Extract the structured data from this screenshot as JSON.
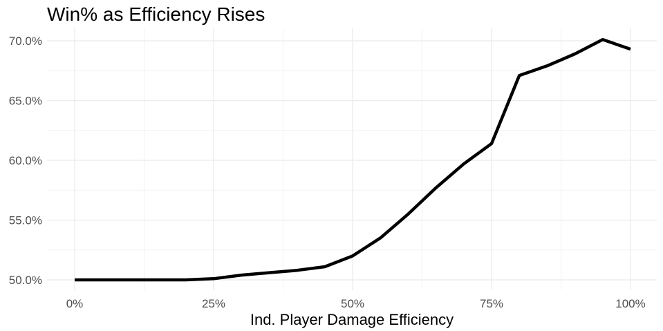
{
  "chart_data": {
    "type": "line",
    "title": "Win% as Efficiency Rises",
    "xlabel": "Ind. Player Damage Efficiency",
    "ylabel": "",
    "xlim": [
      0,
      1
    ],
    "ylim": [
      0.5,
      0.7
    ],
    "x_ticks": [
      {
        "value": 0,
        "label": "0%"
      },
      {
        "value": 0.25,
        "label": "25%"
      },
      {
        "value": 0.5,
        "label": "50%"
      },
      {
        "value": 0.75,
        "label": "75%"
      },
      {
        "value": 1,
        "label": "100%"
      }
    ],
    "y_ticks": [
      {
        "value": 0.5,
        "label": "50.0%"
      },
      {
        "value": 0.55,
        "label": "55.0%"
      },
      {
        "value": 0.6,
        "label": "60.0%"
      },
      {
        "value": 0.65,
        "label": "65.0%"
      },
      {
        "value": 0.7,
        "label": "70.0%"
      }
    ],
    "grid": true,
    "series": [
      {
        "color": "#000000",
        "x": [
          0,
          0.05,
          0.1,
          0.15,
          0.2,
          0.25,
          0.3,
          0.35,
          0.4,
          0.45,
          0.5,
          0.55,
          0.6,
          0.65,
          0.7,
          0.75,
          0.8,
          0.85,
          0.9,
          0.95,
          1.0
        ],
        "y": [
          0.5,
          0.5,
          0.5,
          0.5,
          0.5,
          0.501,
          0.504,
          0.506,
          0.508,
          0.511,
          0.52,
          0.535,
          0.555,
          0.577,
          0.597,
          0.614,
          0.671,
          0.679,
          0.689,
          0.701,
          0.693
        ]
      }
    ]
  }
}
